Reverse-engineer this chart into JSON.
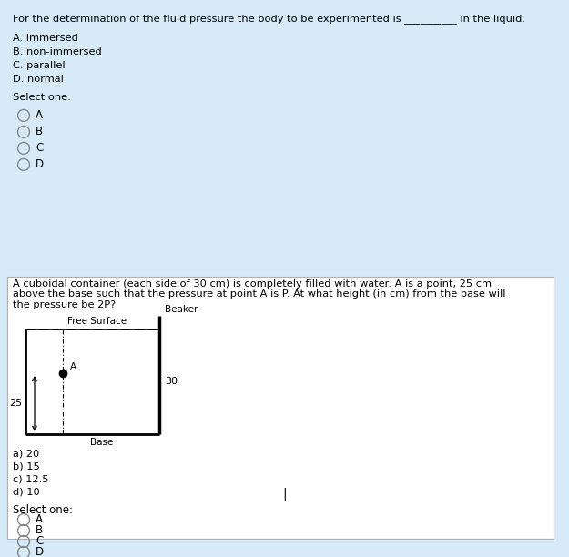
{
  "bg_color": "#d6eaf8",
  "white_box_color": "#ffffff",
  "border_color": "#aaaaaa",
  "q1_text": "For the determination of the fluid pressure the body to be experimented is __________ in the liquid.",
  "q1_options": [
    "A. immersed",
    "B. non-immersed",
    "C. parallel",
    "D. normal"
  ],
  "select_one": "Select one:",
  "radio_labels_q1": [
    "A",
    "B",
    "C",
    "D"
  ],
  "q2_text": "A cuboidal container (each side of 30 cm) is completely filled with water. A is a point, 25 cm\nabove the base such that the pressure at point A is P. At what height (in cm) from the base will\nthe pressure be 2P?",
  "q2_options": [
    "a) 20",
    "b) 15",
    "c) 12.5",
    "d) 10"
  ],
  "radio_labels_q2": [
    "A",
    "B",
    "C",
    "D"
  ],
  "diagram": {
    "beaker_label": "Beaker",
    "free_surface_label": "Free Surface",
    "base_label": "Base",
    "point_label": "A",
    "height_left": "25",
    "height_right": "30"
  },
  "text_color": "#000000",
  "radio_color": "#888888",
  "font_size_main": 8.2,
  "font_size_small": 7.5,
  "font_size_radio": 8.5
}
